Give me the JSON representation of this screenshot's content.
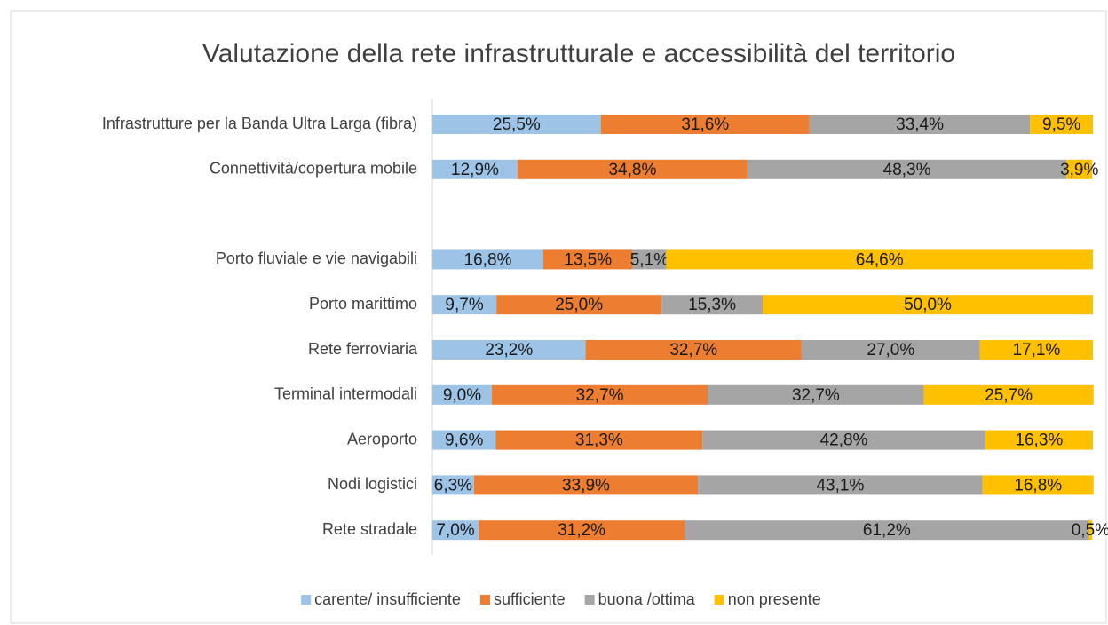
{
  "chart_data": {
    "type": "stacked-bar-horizontal",
    "title": "Valutazione della rete infrastrutturale e accessibilità del territorio",
    "categories": [
      "Infrastrutture per la Banda Ultra Larga (fibra)",
      "Connettività/copertura mobile",
      null,
      "Porto fluviale e vie navigabili",
      "Porto marittimo",
      "Rete ferroviaria",
      "Terminal intermodali",
      "Aeroporto",
      "Nodi logistici",
      "Rete stradale"
    ],
    "series": [
      {
        "name": "carente/ insufficiente",
        "color": "#9dc3e6",
        "values": [
          25.5,
          12.9,
          null,
          16.8,
          9.7,
          23.2,
          9.0,
          9.6,
          6.3,
          7.0
        ],
        "value_labels": [
          "25,5%",
          "12,9%",
          null,
          "16,8%",
          "9,7%",
          "23,2%",
          "9,0%",
          "9,6%",
          "6,3%",
          "7,0%"
        ]
      },
      {
        "name": "sufficiente",
        "color": "#ed7d31",
        "values": [
          31.6,
          34.8,
          null,
          13.5,
          25.0,
          32.7,
          32.7,
          31.3,
          33.9,
          31.2
        ],
        "value_labels": [
          "31,6%",
          "34,8%",
          null,
          "13,5%",
          "25,0%",
          "32,7%",
          "32,7%",
          "31,3%",
          "33,9%",
          "31,2%"
        ]
      },
      {
        "name": "buona /ottima",
        "color": "#a5a5a5",
        "values": [
          33.4,
          48.3,
          null,
          5.1,
          15.3,
          27.0,
          32.7,
          42.8,
          43.1,
          61.2
        ],
        "value_labels": [
          "33,4%",
          "48,3%",
          null,
          "5,1%",
          "15,3%",
          "27,0%",
          "32,7%",
          "42,8%",
          "43,1%",
          "61,2%"
        ]
      },
      {
        "name": "non presente",
        "color": "#ffc000",
        "values": [
          9.5,
          3.9,
          null,
          64.6,
          50.0,
          17.1,
          25.7,
          16.3,
          16.8,
          0.5
        ],
        "value_labels": [
          "9,5%",
          "3,9%",
          null,
          "64,6%",
          "50,0%",
          "17,1%",
          "25,7%",
          "16,3%",
          "16,8%",
          "0,5%"
        ]
      }
    ],
    "xlim": [
      0,
      100
    ],
    "legend": "bottom"
  }
}
